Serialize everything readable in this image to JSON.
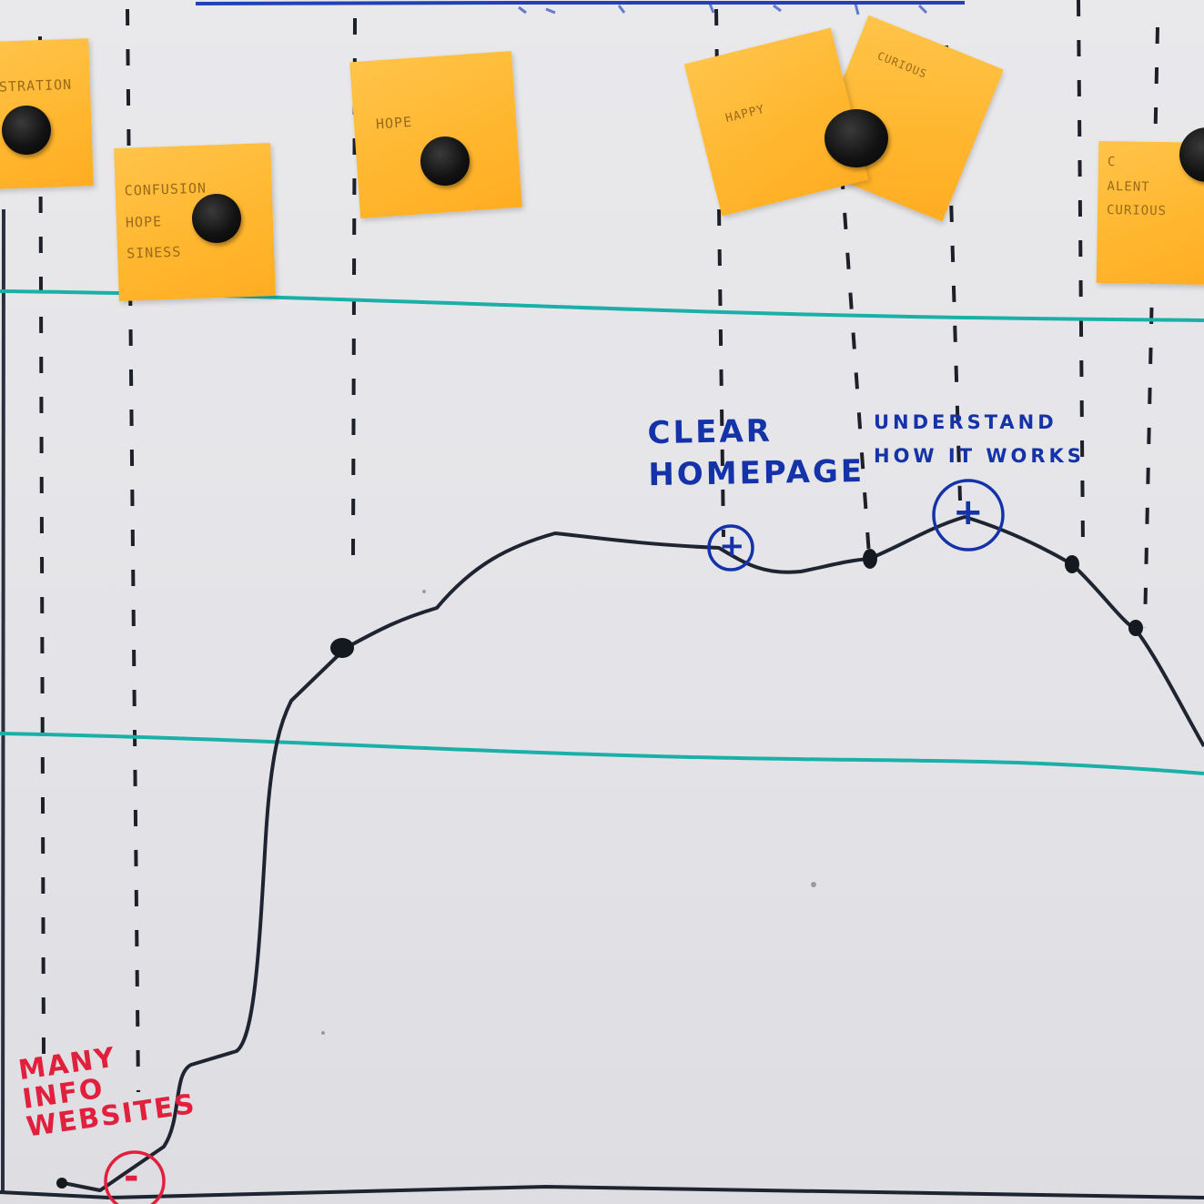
{
  "board": {
    "background": "#e6e6ea",
    "marker_colors": {
      "curve": "#1e2430",
      "teal_lines": "#1ab0a8",
      "blue_text": "#1533a8",
      "red_text": "#e0203c",
      "sticky_note": "#ffb62e"
    }
  },
  "sticky_notes": [
    {
      "text": "STRATION"
    },
    {
      "text": "CONFUSION\nHOPE\nSINESS"
    },
    {
      "text": "HOPE"
    },
    {
      "text": "HAPPY"
    },
    {
      "text": "CURIOUS"
    },
    {
      "text": "C\nALENT\nCURIOUS"
    }
  ],
  "annotations": {
    "clear_homepage": "CLEAR\nHOMEPAGE",
    "understand": "UNDERSTAND\nHOW IT WORKS",
    "plus_sign": "+",
    "minus_sign": "-",
    "many_info": "MANY\nINFO\nWEBSITES"
  }
}
